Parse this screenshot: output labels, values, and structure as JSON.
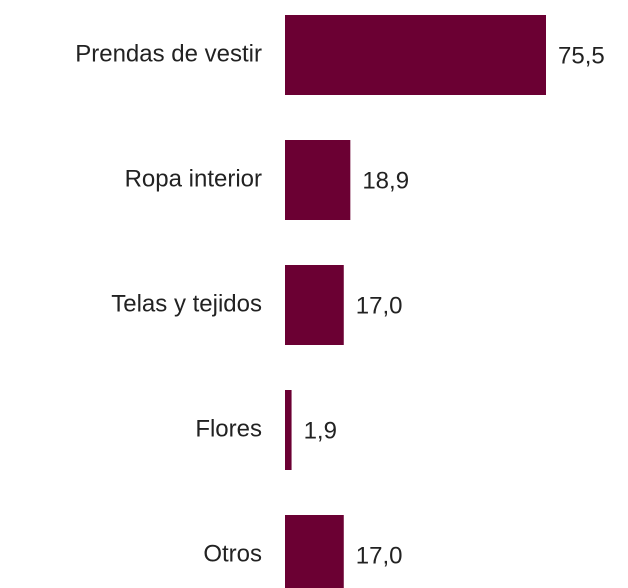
{
  "chart_data": {
    "type": "bar",
    "orientation": "horizontal",
    "categories": [
      "Prendas de vestir",
      "Ropa interior",
      "Telas y tejidos",
      "Flores",
      "Otros"
    ],
    "values": [
      75.5,
      18.9,
      17.0,
      1.9,
      17.0
    ],
    "value_labels": [
      "75,5",
      "18,9",
      "17,0",
      "1,9",
      "17,0"
    ],
    "color": "#6b0033"
  }
}
